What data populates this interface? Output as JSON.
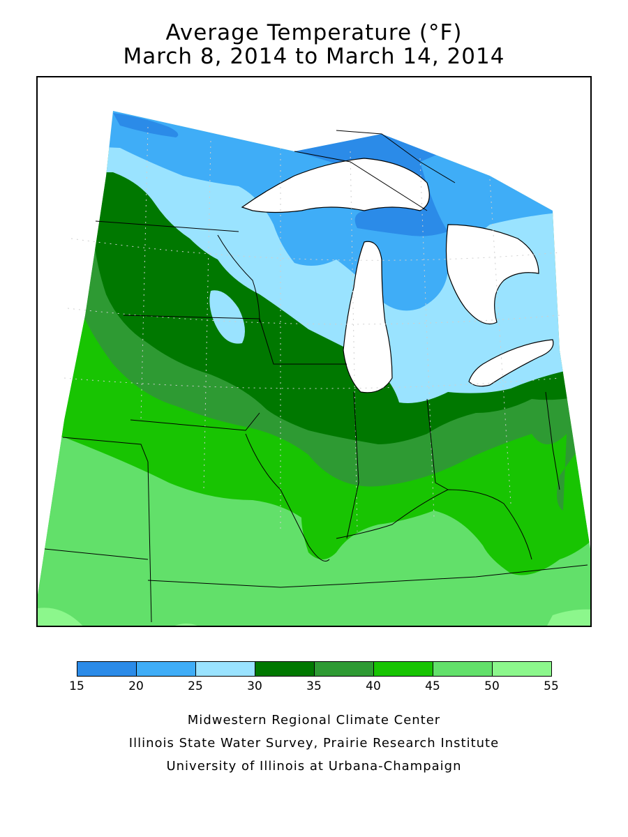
{
  "title": {
    "line1": "Average Temperature (°F)",
    "line2": "March 8, 2014 to March 14, 2014"
  },
  "legend": {
    "bins": [
      {
        "from": 15,
        "to": 20,
        "color": "#2b8be8"
      },
      {
        "from": 20,
        "to": 25,
        "color": "#3fadf7"
      },
      {
        "from": 25,
        "to": 30,
        "color": "#9ae3ff"
      },
      {
        "from": 30,
        "to": 35,
        "color": "#007800"
      },
      {
        "from": 35,
        "to": 40,
        "color": "#2e9a33"
      },
      {
        "from": 40,
        "to": 45,
        "color": "#18c402"
      },
      {
        "from": 45,
        "to": 50,
        "color": "#62e06a"
      },
      {
        "from": 50,
        "to": 55,
        "color": "#8cf78c"
      }
    ],
    "tick_labels": [
      "15",
      "20",
      "25",
      "30",
      "35",
      "40",
      "45",
      "50",
      "55"
    ]
  },
  "credits": {
    "line1": "Midwestern Regional Climate Center",
    "line2": "Illinois State Water Survey, Prairie Research Institute",
    "line3": "University of Illinois at Urbana-Champaign"
  },
  "colors": {
    "water": "#ffffff",
    "boundary": "#000000",
    "grid": "#cfcfcf"
  }
}
